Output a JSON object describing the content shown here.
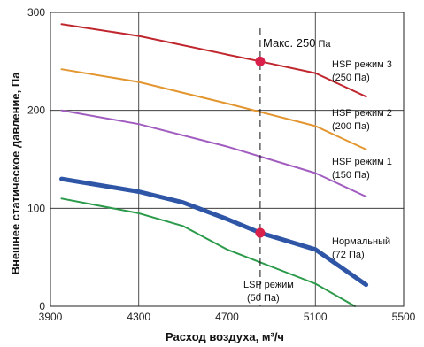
{
  "chart_data": {
    "type": "line",
    "xlabel": "Расход воздуха, м³/ч",
    "ylabel": "Внешнее статическое давление, Па",
    "xlim": [
      3900,
      5500
    ],
    "ylim": [
      0,
      300
    ],
    "xticks": [
      3900,
      4300,
      4700,
      5100,
      5500
    ],
    "yticks": [
      0,
      100,
      200,
      300
    ],
    "grid": true,
    "series": [
      {
        "name": "HSP режим 3 (250 Па)",
        "color": "#c0262d",
        "width": 2,
        "x": [
          3950,
          4300,
          4700,
          4850,
          5100,
          5330
        ],
        "y": [
          288,
          276,
          257,
          250,
          238,
          214
        ]
      },
      {
        "name": "HSP режим 2 (200 Па)",
        "color": "#e3962f",
        "width": 2,
        "x": [
          3950,
          4300,
          4700,
          5100,
          5330
        ],
        "y": [
          242,
          229,
          207,
          184,
          160
        ]
      },
      {
        "name": "HSP режим 1 (150 Па)",
        "color": "#a15cbf",
        "width": 2,
        "x": [
          3950,
          4300,
          4700,
          5100,
          5330
        ],
        "y": [
          200,
          186,
          163,
          136,
          112
        ]
      },
      {
        "name": "Нормальный (72 Па)",
        "color": "#2e55a6",
        "width": 5,
        "x": [
          3950,
          4300,
          4500,
          4700,
          4850,
          5100,
          5330
        ],
        "y": [
          130,
          117,
          106,
          89,
          75,
          58,
          22
        ]
      },
      {
        "name": "LSP режим (50 Па)",
        "color": "#2b9a4a",
        "width": 2,
        "x": [
          3950,
          4300,
          4500,
          4700,
          5100,
          5280
        ],
        "y": [
          110,
          95,
          82,
          58,
          23,
          0
        ]
      }
    ],
    "reference_line": {
      "x": 4850,
      "style": "dashed"
    },
    "markers": [
      {
        "x": 4850,
        "y": 250,
        "color": "#d8204a"
      },
      {
        "x": 4850,
        "y": 75,
        "color": "#d8204a"
      }
    ],
    "annotations": {
      "max": "Макс. 250",
      "max_unit": "Па",
      "hsp3": [
        "HSP режим 3",
        "(250 Па)"
      ],
      "hsp2": [
        "HSP режим 2",
        "(200 Па)"
      ],
      "hsp1": [
        "HSP режим 1",
        "(150 Па)"
      ],
      "normal": [
        "Нормальный",
        "(72 Па)"
      ],
      "lsp": [
        "LSP режим",
        "(50 Па)"
      ]
    }
  }
}
